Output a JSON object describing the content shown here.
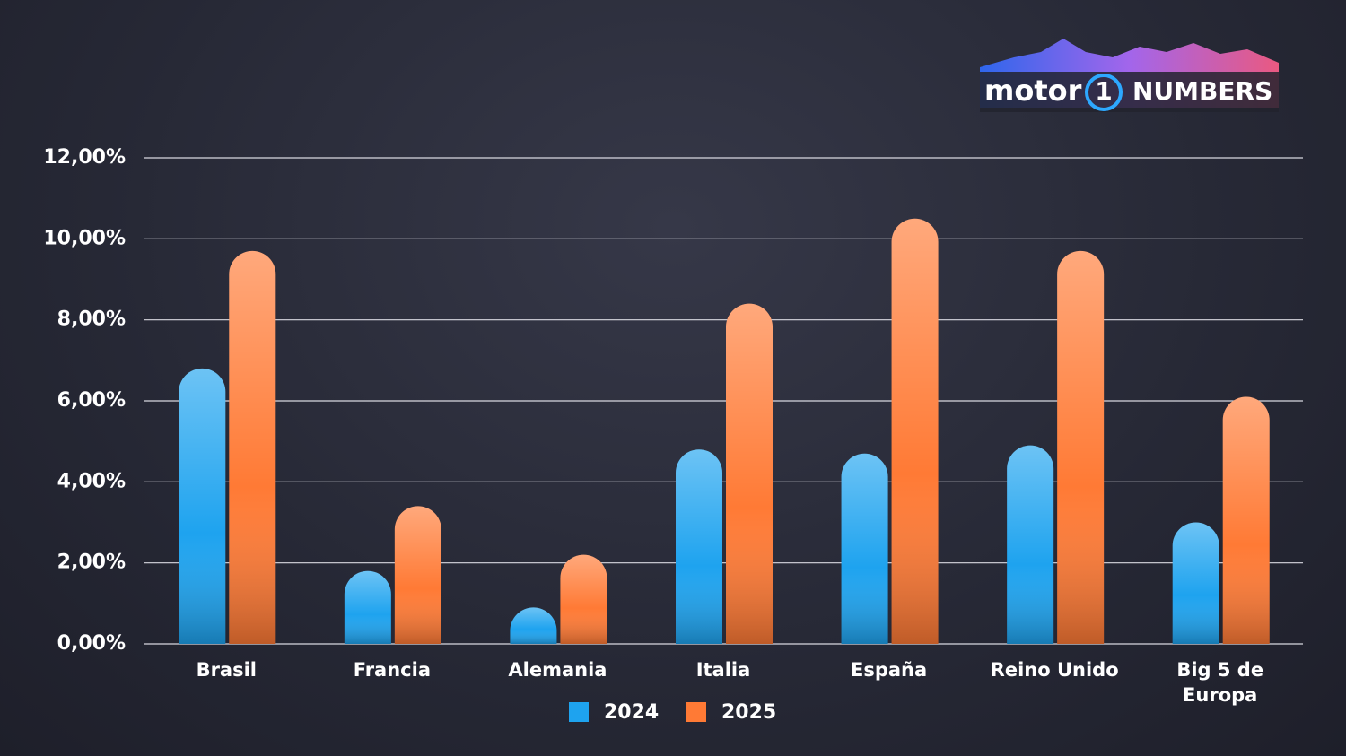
{
  "brand": {
    "prefix": "motor",
    "mark": "1",
    "suffix": "NUMBERS"
  },
  "chart_data": {
    "type": "bar",
    "categories": [
      "Brasil",
      "Francia",
      "Alemania",
      "Italia",
      "España",
      "Reino Unido",
      "Big 5 de Europa"
    ],
    "series": [
      {
        "name": "2024",
        "color": "#1ea3ef",
        "values": [
          6.8,
          1.8,
          0.9,
          4.8,
          4.7,
          4.9,
          3.0
        ]
      },
      {
        "name": "2025",
        "color": "#ff7a35",
        "values": [
          9.7,
          3.4,
          2.2,
          8.4,
          10.5,
          9.7,
          6.1
        ]
      }
    ],
    "ylim": [
      0,
      12
    ],
    "yticks": [
      {
        "value": 0,
        "label": "0,00%"
      },
      {
        "value": 2,
        "label": "2,00%"
      },
      {
        "value": 4,
        "label": "4,00%"
      },
      {
        "value": 6,
        "label": "6,00%"
      },
      {
        "value": 8,
        "label": "8,00%"
      },
      {
        "value": 10,
        "label": "10,00%"
      },
      {
        "value": 12,
        "label": "12,00%"
      }
    ],
    "grid": true,
    "legend": "bottom"
  }
}
